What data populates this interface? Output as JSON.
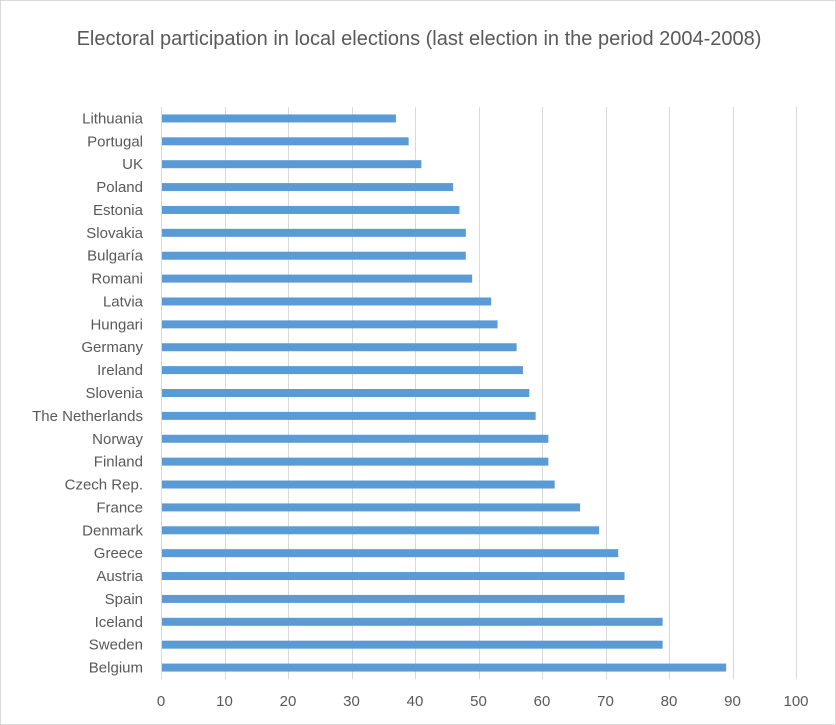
{
  "chart_data": {
    "type": "bar",
    "orientation": "horizontal",
    "title": "Electoral participation in local elections (last election in the period 2004-2008)",
    "xlabel": "",
    "ylabel": "",
    "xlim": [
      0,
      100
    ],
    "xticks": [
      0,
      10,
      20,
      30,
      40,
      50,
      60,
      70,
      80,
      90,
      100
    ],
    "grid": "vertical",
    "legend": "none",
    "bar_color": "#5b9bd5",
    "grid_color": "#d9d9d9",
    "text_color": "#595959",
    "categories": [
      "Lithuania",
      "Portugal",
      "UK",
      "Poland",
      "Estonia",
      "Slovakia",
      "Bulgaría",
      "Romani",
      "Latvia",
      "Hungari",
      "Germany",
      "Ireland",
      "Slovenia",
      "The Netherlands",
      "Norway",
      "Finland",
      "Czech Rep.",
      "France",
      "Denmark",
      "Greece",
      "Austria",
      "Spain",
      "Iceland",
      "Sweden",
      "Belgium"
    ],
    "values": [
      37,
      39,
      41,
      46,
      47,
      48,
      48,
      49,
      52,
      53,
      56,
      57,
      58,
      59,
      61,
      61,
      62,
      66,
      69,
      72,
      73,
      73,
      79,
      79,
      89
    ]
  }
}
